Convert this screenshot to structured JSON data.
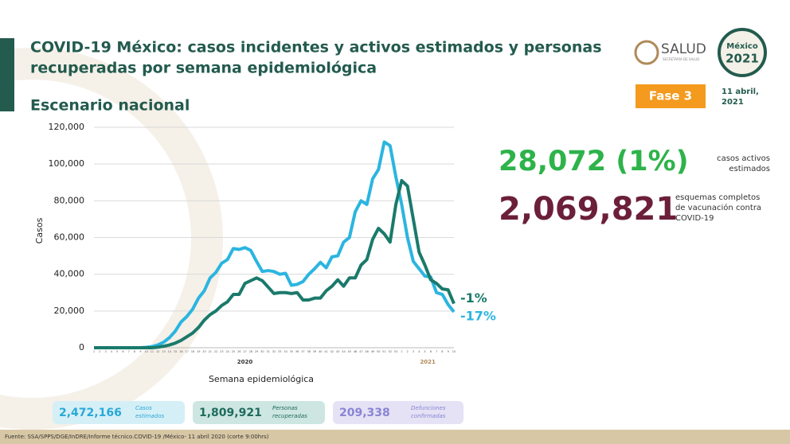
{
  "header": {
    "title_line1": "COVID-19 México: casos incidentes y activos estimados y personas",
    "title_line2": "recuperadas por semana epidemiológica",
    "subtitle": "Escenario nacional",
    "logo_text": "SALUD",
    "logo_subtext": "SECRETARÍA DE SALUD",
    "emblem_line1": "México",
    "emblem_line2": "2021",
    "phase": "Fase 3",
    "date_line1": "11 abril,",
    "date_line2": "2021"
  },
  "chart_data": {
    "type": "line",
    "x_label": "Semana epidemiológica",
    "y_label": "Casos",
    "categories": [
      "1",
      "2",
      "3",
      "4",
      "5",
      "6",
      "7",
      "8",
      "9",
      "10",
      "11",
      "12",
      "13",
      "14",
      "15",
      "16",
      "17",
      "18",
      "19",
      "20",
      "21",
      "22",
      "23",
      "24",
      "25",
      "26",
      "27",
      "28",
      "29",
      "30",
      "31",
      "32",
      "33",
      "34",
      "35",
      "36",
      "37",
      "38",
      "39",
      "40",
      "41",
      "42",
      "43",
      "44",
      "45",
      "46",
      "47",
      "48",
      "49",
      "50",
      "51",
      "52",
      "53",
      "1",
      "2",
      "3",
      "4",
      "5",
      "6",
      "7",
      "8",
      "9",
      "10"
    ],
    "year_labels": [
      "2020",
      "2021"
    ],
    "series": [
      {
        "color": "#2bb5e0",
        "end_label": "-17%",
        "values": [
          0,
          0,
          0,
          0,
          0,
          0,
          0,
          0,
          0,
          200,
          600,
          1500,
          3000,
          5500,
          9000,
          14000,
          17000,
          21000,
          27000,
          31000,
          38000,
          41000,
          46000,
          48000,
          54000,
          53500,
          54500,
          53000,
          47000,
          41500,
          42000,
          41500,
          40000,
          40500,
          34000,
          34500,
          36000,
          40000,
          43000,
          46500,
          43500,
          49500,
          50000,
          57500,
          60000,
          74000,
          80000,
          78000,
          92000,
          97000,
          112000,
          110000,
          93000,
          78000,
          60000,
          47000,
          43000,
          39000,
          38500,
          30000,
          29000,
          23500,
          19500
        ]
      },
      {
        "color": "#1a7a6b",
        "end_label": "-1%",
        "values": [
          0,
          0,
          0,
          0,
          0,
          0,
          0,
          0,
          0,
          0,
          0,
          300,
          800,
          1500,
          2500,
          4000,
          6000,
          8000,
          11000,
          15000,
          18000,
          20000,
          23000,
          25000,
          29000,
          29000,
          35000,
          36500,
          38000,
          36500,
          33000,
          29500,
          30000,
          30000,
          29500,
          30000,
          26000,
          26000,
          27000,
          27000,
          31000,
          33500,
          37000,
          33500,
          38000,
          38000,
          45000,
          48000,
          59000,
          65000,
          62000,
          57500,
          78000,
          91000,
          88000,
          70000,
          52000,
          45000,
          37000,
          35000,
          32000,
          31500,
          24000
        ]
      }
    ],
    "ylim": [
      0,
      120000
    ],
    "yticks": [
      0,
      {
        "value": 20000,
        "label": "20,000"
      },
      {
        "value": 40000,
        "label": "40,000"
      },
      {
        "value": 60000,
        "label": "60,000"
      },
      {
        "value": 80000,
        "label": "80,000"
      },
      {
        "value": 100000,
        "label": "100,000"
      },
      {
        "value": 120000,
        "label": "120,000"
      }
    ],
    "grid": true
  },
  "stats": {
    "active": "28,072 (1%)",
    "active_label_line1": "casos activos",
    "active_label_line2": "estimados",
    "vaccinated": "2,069,821",
    "vaccinated_label_line1": "esquemas completos",
    "vaccinated_label_line2": "de vacunación contra",
    "vaccinated_label_line3": "COVID-19"
  },
  "summary": [
    {
      "value": "2,472,166",
      "label_line1": "Casos",
      "label_line2": "estimados"
    },
    {
      "value": "1,809,921",
      "label_line1": "Personas",
      "label_line2": "recuperadas"
    },
    {
      "value": "209,338",
      "label_line1": "Defunciones",
      "label_line2": "confirmadas"
    }
  ],
  "footer": "Fuente: SSA/SPPS/DGE/InDRE/Informe técnico.COVID-19 /México- 11 abril 2020 (corte 9:00hrs)"
}
